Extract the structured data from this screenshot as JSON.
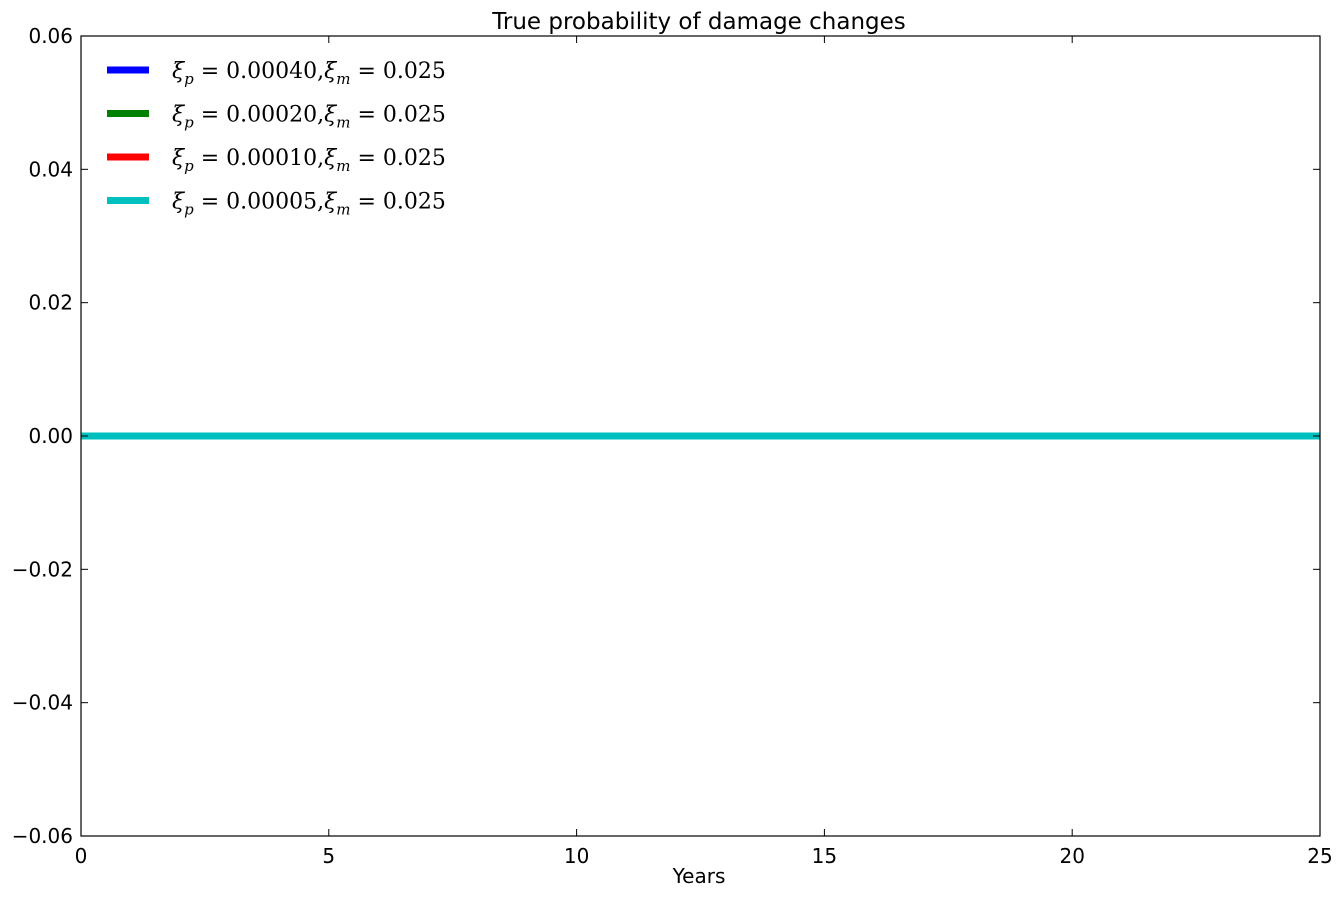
{
  "chart_data": {
    "type": "line",
    "title": "True probability of damage changes",
    "xlabel": "Years",
    "ylabel": "",
    "xlim": [
      0,
      25
    ],
    "ylim": [
      -0.06,
      0.06
    ],
    "xticks": [
      0,
      5,
      10,
      15,
      20,
      25
    ],
    "xtick_labels": [
      "0",
      "5",
      "10",
      "15",
      "20",
      "25"
    ],
    "yticks": [
      -0.06,
      -0.04,
      -0.02,
      0.0,
      0.02,
      0.04,
      0.06
    ],
    "ytick_labels": [
      "−0.06",
      "−0.04",
      "−0.02",
      "0.00",
      "0.02",
      "0.04",
      "0.06"
    ],
    "grid": false,
    "legend_position": "top-left",
    "series": [
      {
        "name": "ξ_p = 0.00040, ξ_m = 0.025",
        "sub": "p",
        "val_p": "0.00040",
        "val_m": "0.025",
        "color": "#0000ff",
        "x": [
          0,
          25
        ],
        "y": [
          0,
          0
        ]
      },
      {
        "name": "ξ_p = 0.00020, ξ_m = 0.025",
        "sub": "p",
        "val_p": "0.00020",
        "val_m": "0.025",
        "color": "#008000",
        "x": [
          0,
          25
        ],
        "y": [
          0,
          0
        ]
      },
      {
        "name": "ξ_p = 0.00010, ξ_m = 0.025",
        "sub": "p",
        "val_p": "0.00010",
        "val_m": "0.025",
        "color": "#ff0000",
        "x": [
          0,
          25
        ],
        "y": [
          0,
          0
        ]
      },
      {
        "name": "ξ_p = 0.00005, ξ_m = 0.025",
        "sub": "p",
        "val_p": "0.00005",
        "val_m": "0.025",
        "color": "#00bfbf",
        "x": [
          0,
          25
        ],
        "y": [
          0,
          0
        ]
      }
    ]
  }
}
